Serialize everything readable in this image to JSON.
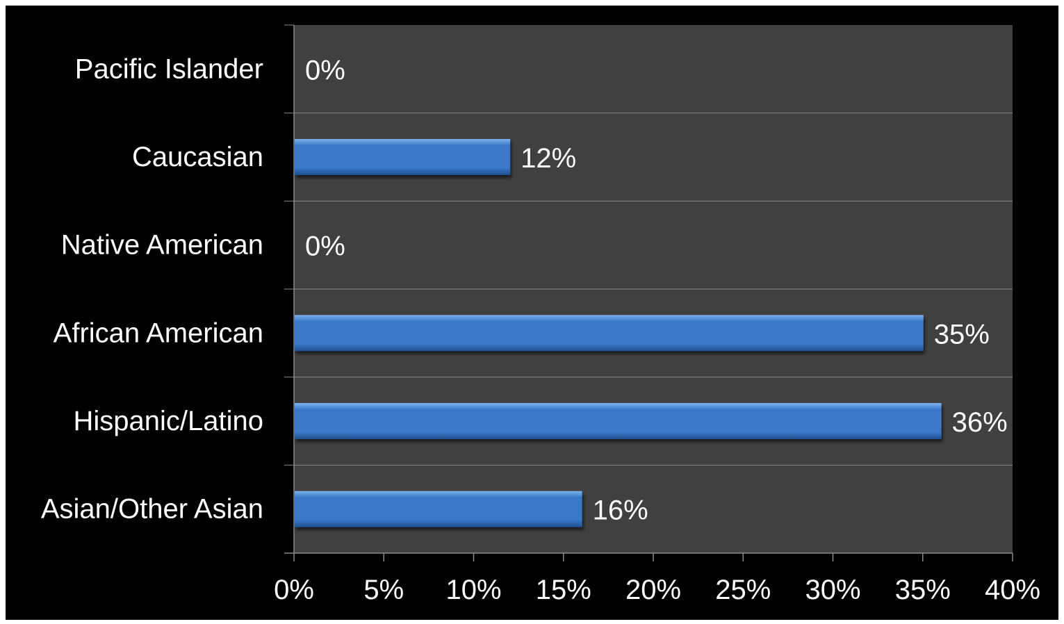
{
  "chart_data": {
    "type": "bar",
    "orientation": "horizontal",
    "categories": [
      "Pacific Islander",
      "Caucasian",
      "Native American",
      "African American",
      "Hispanic/Latino",
      "Asian/Other Asian"
    ],
    "values": [
      0,
      12,
      0,
      35,
      36,
      16
    ],
    "data_labels": [
      "0%",
      "12%",
      "0%",
      "35%",
      "36%",
      "16%"
    ],
    "xlim": [
      0,
      40
    ],
    "x_ticks": [
      0,
      5,
      10,
      15,
      20,
      25,
      30,
      35,
      40
    ],
    "x_tick_labels": [
      "0%",
      "5%",
      "10%",
      "15%",
      "20%",
      "25%",
      "30%",
      "35%",
      "40%"
    ],
    "title": "",
    "xlabel": "",
    "ylabel": "",
    "grid": "horizontal category separators",
    "legend": "none",
    "colors": {
      "background": "#000000",
      "plot_area": "#404040",
      "bar": "#3a78c8",
      "bar_highlight": "#7fb2ef",
      "bar_shadow": "#1f4f8f",
      "gridline": "#8a8a8a",
      "text": "#ffffff"
    }
  }
}
